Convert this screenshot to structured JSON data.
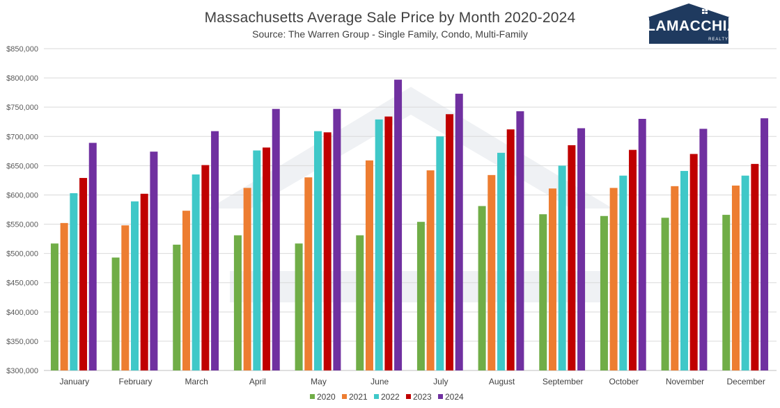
{
  "chart_data": {
    "type": "bar",
    "title": "Massachusetts Average Sale Price by Month 2020-2024",
    "subtitle": "Source: The Warren Group - Single Family, Condo, Multi-Family",
    "categories": [
      "January",
      "February",
      "March",
      "April",
      "May",
      "June",
      "July",
      "August",
      "September",
      "October",
      "November",
      "December"
    ],
    "series": [
      {
        "name": "2020",
        "color": "#70ad47",
        "values": [
          517000,
          493000,
          515000,
          531000,
          517000,
          531000,
          554000,
          581000,
          567000,
          564000,
          561000,
          566000
        ]
      },
      {
        "name": "2021",
        "color": "#ed7d31",
        "values": [
          552000,
          548000,
          573000,
          612000,
          630000,
          659000,
          642000,
          634000,
          611000,
          612000,
          615000,
          616000
        ]
      },
      {
        "name": "2022",
        "color": "#3fc8c8",
        "values": [
          603000,
          589000,
          635000,
          676000,
          709000,
          729000,
          700000,
          672000,
          650000,
          633000,
          641000,
          633000
        ]
      },
      {
        "name": "2023",
        "color": "#c00000",
        "values": [
          629000,
          602000,
          651000,
          681000,
          707000,
          734000,
          738000,
          712000,
          685000,
          677000,
          670000,
          653000
        ]
      },
      {
        "name": "2024",
        "color": "#7030a0",
        "values": [
          689000,
          674000,
          709000,
          747000,
          747000,
          797000,
          773000,
          743000,
          714000,
          730000,
          713000,
          731000
        ]
      }
    ],
    "ylim": [
      300000,
      850000
    ],
    "yticks": [
      "$300,000",
      "$350,000",
      "$400,000",
      "$450,000",
      "$500,000",
      "$550,000",
      "$600,000",
      "$650,000",
      "$700,000",
      "$750,000",
      "$800,000",
      "$850,000"
    ],
    "xlabel": "",
    "ylabel": "",
    "grid": true,
    "legend_position": "bottom"
  },
  "logo": {
    "name": "LAMACCHIA",
    "sub": "REALTY",
    "color": "#1f3a5f"
  }
}
